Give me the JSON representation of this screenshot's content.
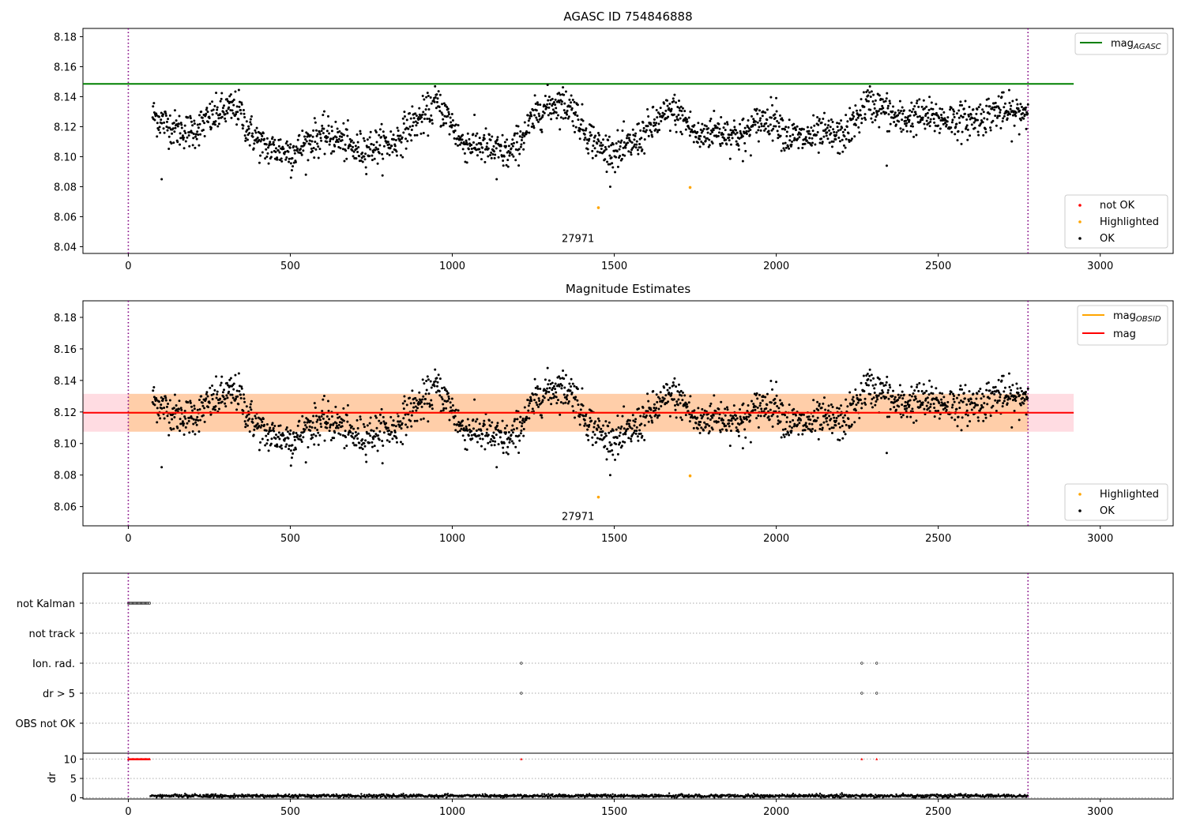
{
  "chart_data": [
    {
      "type": "scatter",
      "title": "AGASC ID 754846888",
      "xlim": [
        -140,
        3225
      ],
      "ylim": [
        8.0355,
        8.1855
      ],
      "xticks": [
        0,
        500,
        1000,
        1500,
        2000,
        2500,
        3000
      ],
      "yticks": [
        8.04,
        8.06,
        8.08,
        8.1,
        8.12,
        8.14,
        8.16,
        8.18
      ],
      "ytick_labels": [
        "8.04",
        "8.06",
        "8.08",
        "8.10",
        "8.12",
        "8.14",
        "8.16",
        "8.18"
      ],
      "obs_boundaries": [
        0,
        2777
      ],
      "obsid_label": {
        "text": "27971",
        "x": 1388,
        "y": 8.042
      },
      "mag_agasc": {
        "value": 8.1485,
        "x_range": [
          -140,
          2918
        ],
        "color": "#008000"
      },
      "series": [
        {
          "name": "not OK",
          "color": "#ff0000",
          "points": []
        },
        {
          "name": "Highlighted",
          "color": "#ffa500",
          "points": [
            [
              1451,
              8.066
            ],
            [
              1734,
              8.0795
            ]
          ]
        },
        {
          "name": "OK",
          "color": "#000000",
          "generated": true,
          "x_range": [
            75,
            2777
          ],
          "n_points": 2000,
          "trend": [
            [
              75,
              8.128
            ],
            [
              100,
              8.124
            ],
            [
              150,
              8.118
            ],
            [
              200,
              8.117
            ],
            [
              250,
              8.125
            ],
            [
              300,
              8.131
            ],
            [
              340,
              8.132
            ],
            [
              370,
              8.118
            ],
            [
              420,
              8.106
            ],
            [
              480,
              8.104
            ],
            [
              520,
              8.104
            ],
            [
              560,
              8.111
            ],
            [
              600,
              8.114
            ],
            [
              650,
              8.112
            ],
            [
              700,
              8.104
            ],
            [
              760,
              8.107
            ],
            [
              820,
              8.109
            ],
            [
              870,
              8.121
            ],
            [
              920,
              8.128
            ],
            [
              950,
              8.136
            ],
            [
              990,
              8.125
            ],
            [
              1030,
              8.109
            ],
            [
              1080,
              8.108
            ],
            [
              1130,
              8.104
            ],
            [
              1180,
              8.102
            ],
            [
              1230,
              8.118
            ],
            [
              1270,
              8.131
            ],
            [
              1320,
              8.136
            ],
            [
              1370,
              8.133
            ],
            [
              1410,
              8.117
            ],
            [
              1460,
              8.105
            ],
            [
              1520,
              8.103
            ],
            [
              1570,
              8.111
            ],
            [
              1620,
              8.121
            ],
            [
              1680,
              8.131
            ],
            [
              1720,
              8.124
            ],
            [
              1760,
              8.112
            ],
            [
              1800,
              8.118
            ],
            [
              1850,
              8.116
            ],
            [
              1900,
              8.114
            ],
            [
              1950,
              8.124
            ],
            [
              2000,
              8.126
            ],
            [
              2030,
              8.114
            ],
            [
              2080,
              8.112
            ],
            [
              2150,
              8.115
            ],
            [
              2200,
              8.113
            ],
            [
              2240,
              8.122
            ],
            [
              2280,
              8.136
            ],
            [
              2330,
              8.132
            ],
            [
              2380,
              8.124
            ],
            [
              2430,
              8.127
            ],
            [
              2480,
              8.126
            ],
            [
              2530,
              8.125
            ],
            [
              2580,
              8.124
            ],
            [
              2630,
              8.126
            ],
            [
              2680,
              8.131
            ],
            [
              2730,
              8.128
            ],
            [
              2777,
              8.131
            ]
          ],
          "scatter": 0.006,
          "outliers": [
            [
              103,
              8.085
            ],
            [
              502,
              8.086
            ],
            [
              1137,
              8.085
            ],
            [
              2341,
              8.094
            ],
            [
              1487,
              8.095
            ],
            [
              1897,
              8.097
            ]
          ]
        }
      ],
      "legends": [
        {
          "position": "upper-right",
          "entries": [
            "mag_AGASC"
          ]
        },
        {
          "position": "lower-right",
          "entries": [
            "not OK",
            "Highlighted",
            "OK"
          ]
        }
      ]
    },
    {
      "type": "scatter",
      "title": "Magnitude Estimates",
      "xlim": [
        -140,
        3225
      ],
      "ylim": [
        8.0478,
        8.1905
      ],
      "xticks": [
        0,
        500,
        1000,
        1500,
        2000,
        2500,
        3000
      ],
      "yticks": [
        8.06,
        8.08,
        8.1,
        8.12,
        8.14,
        8.16,
        8.18
      ],
      "ytick_labels": [
        "8.06",
        "8.08",
        "8.10",
        "8.12",
        "8.14",
        "8.16",
        "8.18"
      ],
      "obs_boundaries": [
        0,
        2777
      ],
      "obsid_label": {
        "text": "27971",
        "x": 1388,
        "y": 8.053
      },
      "mag": {
        "value": 8.1195,
        "x_range": [
          -140,
          2918
        ],
        "color": "#ff0000"
      },
      "mag_band": {
        "range": [
          8.1075,
          8.1315
        ],
        "x_range": [
          -140,
          2918
        ],
        "color": "#ffc0cb"
      },
      "mag_obsid": {
        "value": 8.1195,
        "x_range": [
          0,
          2777
        ],
        "color": "#ffa500",
        "band": [
          8.1075,
          8.1315
        ]
      },
      "series": [
        {
          "name": "Highlighted",
          "color": "#ffa500",
          "points": [
            [
              1451,
              8.066
            ],
            [
              1734,
              8.0795
            ]
          ]
        },
        {
          "name": "OK",
          "color": "#000000",
          "same_as_top": true
        }
      ],
      "legends": [
        {
          "position": "upper-right",
          "entries": [
            "mag_OBSID",
            "mag"
          ]
        },
        {
          "position": "lower-right",
          "entries": [
            "Highlighted",
            "OK"
          ]
        }
      ]
    },
    {
      "type": "scatter",
      "title": "",
      "xlim": [
        -140,
        3225
      ],
      "flags": [
        "not Kalman",
        "not track",
        "Ion. rad.",
        "dr > 5",
        "OBS not OK"
      ],
      "flag_points": {
        "not Kalman": {
          "x_range": [
            0,
            68
          ],
          "step": 3
        },
        "not track": [],
        "Ion. rad.": [
          1213,
          2264,
          2310
        ],
        "dr > 5": [
          1213,
          2264,
          2310
        ],
        "OBS not OK": []
      },
      "obs_boundaries": [
        0,
        2777
      ]
    },
    {
      "type": "scatter",
      "title": "",
      "ylabel": "dr",
      "xlim": [
        -140,
        3225
      ],
      "ylim": [
        -0.3,
        11.5
      ],
      "xticks": [
        0,
        500,
        1000,
        1500,
        2000,
        2500,
        3000
      ],
      "yticks": [
        0,
        5,
        10
      ],
      "ytick_labels": [
        "0",
        "5",
        "10"
      ],
      "dr_clipped": {
        "value": 10,
        "color": "#ff0000",
        "x_range": [
          0,
          68
        ],
        "extra": [
          1213,
          2264,
          2310
        ]
      },
      "dr_ok": {
        "x_range": [
          68,
          2777
        ],
        "mean": 0.5,
        "scatter": 0.4
      },
      "obs_boundaries": [
        0,
        2777
      ]
    }
  ],
  "legend_labels": {
    "mag_agasc_main": "mag",
    "mag_agasc_sub": "AGASC",
    "mag_obsid_main": "mag",
    "mag_obsid_sub": "OBSID",
    "mag": "mag",
    "not_ok": "not OK",
    "highlighted": "Highlighted",
    "ok": "OK"
  }
}
